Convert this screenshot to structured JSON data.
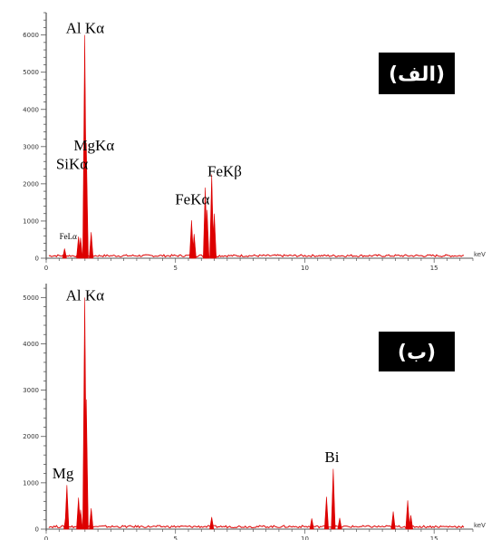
{
  "colors": {
    "spectrum": "#dd0000",
    "axis": "#555555",
    "badge_bg": "#000000",
    "badge_text": "#ffffff"
  },
  "chart_data": [
    {
      "type": "line",
      "panel_label": "(الف)",
      "x_unit": "keV",
      "xlim": [
        0,
        16.5
      ],
      "ylim": [
        0,
        6600
      ],
      "x_ticks": [
        0,
        5,
        10,
        15
      ],
      "y_ticks": [
        0,
        1000,
        2000,
        3000,
        4000,
        5000,
        6000
      ],
      "x_tick_labels": [
        "0",
        "5",
        "10",
        "15"
      ],
      "y_tick_labels": [
        "0",
        "1000",
        "2000",
        "3000",
        "4000",
        "5000",
        "6000"
      ],
      "grid": false,
      "peaks": [
        {
          "x": 0.71,
          "y": 260
        },
        {
          "x": 1.25,
          "y": 580
        },
        {
          "x": 1.33,
          "y": 550
        },
        {
          "x": 1.49,
          "y": 6000
        },
        {
          "x": 1.55,
          "y": 3100
        },
        {
          "x": 1.74,
          "y": 700
        },
        {
          "x": 5.62,
          "y": 1020
        },
        {
          "x": 5.72,
          "y": 650
        },
        {
          "x": 6.15,
          "y": 1900
        },
        {
          "x": 6.22,
          "y": 1300
        },
        {
          "x": 6.4,
          "y": 2250
        },
        {
          "x": 6.5,
          "y": 1200
        }
      ],
      "annotations": [
        {
          "text": "Al Kα",
          "x": 1.5,
          "y": 6050,
          "size": 17
        },
        {
          "text": "MgKα",
          "x": 1.85,
          "y": 2900,
          "size": 17
        },
        {
          "text": "SiKα",
          "x": 1.0,
          "y": 2400,
          "size": 17
        },
        {
          "text": "FeKα",
          "x": 5.65,
          "y": 1450,
          "size": 17
        },
        {
          "text": "FeKβ",
          "x": 6.9,
          "y": 2200,
          "size": 17
        },
        {
          "text": "FeLα",
          "x": 0.85,
          "y": 510,
          "size": 9
        }
      ]
    },
    {
      "type": "line",
      "panel_label": "(ب)",
      "x_unit": "keV",
      "xlim": [
        0,
        16.5
      ],
      "ylim": [
        0,
        5300
      ],
      "x_ticks": [
        0,
        5,
        10,
        15
      ],
      "y_ticks": [
        0,
        1000,
        2000,
        3000,
        4000,
        5000
      ],
      "x_tick_labels": [
        "0",
        "5",
        "10",
        "15"
      ],
      "y_tick_labels": [
        "0",
        "1000",
        "2000",
        "3000",
        "4000",
        "5000"
      ],
      "grid": false,
      "peaks": [
        {
          "x": 0.76,
          "y": 280
        },
        {
          "x": 0.8,
          "y": 950
        },
        {
          "x": 1.25,
          "y": 680
        },
        {
          "x": 1.33,
          "y": 420
        },
        {
          "x": 1.49,
          "y": 5000
        },
        {
          "x": 1.55,
          "y": 2800
        },
        {
          "x": 1.74,
          "y": 450
        },
        {
          "x": 6.4,
          "y": 260
        },
        {
          "x": 10.27,
          "y": 230
        },
        {
          "x": 10.84,
          "y": 700
        },
        {
          "x": 11.1,
          "y": 1300
        },
        {
          "x": 11.35,
          "y": 240
        },
        {
          "x": 13.42,
          "y": 380
        },
        {
          "x": 13.98,
          "y": 620
        },
        {
          "x": 14.1,
          "y": 300
        }
      ],
      "annotations": [
        {
          "text": "Al Kα",
          "x": 1.5,
          "y": 4940,
          "size": 17
        },
        {
          "text": "Mg",
          "x": 0.65,
          "y": 1100,
          "size": 17
        },
        {
          "text": "Bi",
          "x": 11.05,
          "y": 1450,
          "size": 17
        }
      ]
    }
  ]
}
